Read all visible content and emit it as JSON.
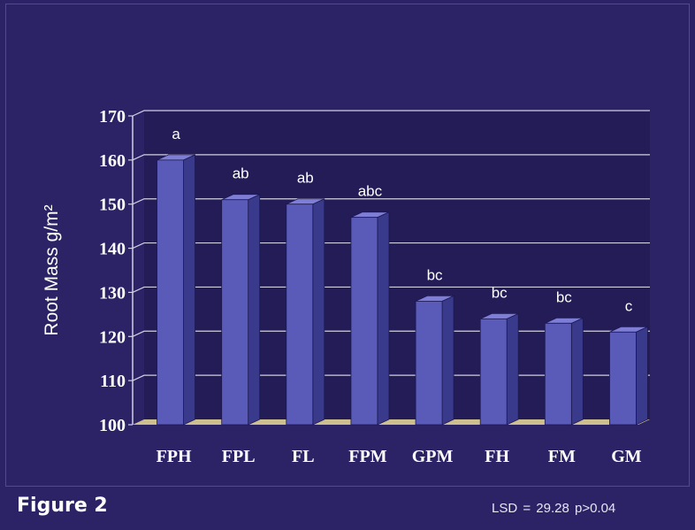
{
  "figure_label": "Figure 2",
  "stats_note": "LSD = 29.28  p>0.04",
  "colors": {
    "background": "#2c2367",
    "plot_area": "#231c57",
    "bar_front": "#5a5ab9",
    "bar_side": "#3a3a8c",
    "bar_top": "#7e7ed6",
    "floor": "#cdbf8e",
    "gridline": "#d0d0e2",
    "text": "#ffffff"
  },
  "chart_data": {
    "type": "bar",
    "title": "",
    "xlabel": "",
    "ylabel": "Root Mass g/m²",
    "ylim": [
      100,
      170
    ],
    "yticks": [
      100,
      110,
      120,
      130,
      140,
      150,
      160,
      170
    ],
    "grid": true,
    "categories": [
      "FPH",
      "FPL",
      "FL",
      "FPM",
      "GPM",
      "FH",
      "FM",
      "GM"
    ],
    "values": [
      160,
      151,
      150,
      147,
      128,
      124,
      123,
      121
    ],
    "significance_letters": [
      "a",
      "ab",
      "ab",
      "abc",
      "bc",
      "bc",
      "bc",
      "c"
    ]
  }
}
